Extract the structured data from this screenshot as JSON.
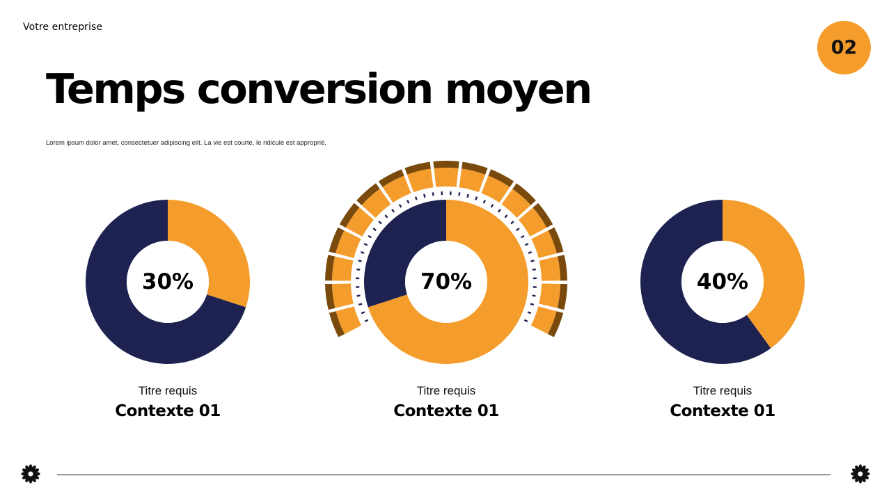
{
  "header": {
    "company": "Votre entreprise",
    "page_number": "02"
  },
  "title": "Temps conversion moyen",
  "subtitle": "Lorem ipsum dolor amet, consectetuer adipiscing elit. La vie est courte, le ridicule est approprié.",
  "colors": {
    "accent": "#F59D2C",
    "navy": "#1E2251",
    "dark_orange": "#7A4A0D",
    "text": "#000000"
  },
  "chart_data": [
    {
      "type": "pie",
      "style": "donut",
      "slices": [
        {
          "value": 30,
          "color": "#F59D2C"
        },
        {
          "value": 70,
          "color": "#1E2251"
        }
      ],
      "center_label": "30%",
      "label": "Titre requis",
      "context": "Contexte 01"
    },
    {
      "type": "pie",
      "style": "donut-gauge",
      "slices": [
        {
          "value": 70,
          "color": "#F59D2C"
        },
        {
          "value": 30,
          "color": "#1E2251"
        }
      ],
      "center_label": "70%",
      "label": "Titre requis",
      "context": "Contexte 01"
    },
    {
      "type": "pie",
      "style": "donut",
      "slices": [
        {
          "value": 40,
          "color": "#F59D2C"
        },
        {
          "value": 60,
          "color": "#1E2251"
        }
      ],
      "center_label": "40%",
      "label": "Titre requis",
      "context": "Contexte 01"
    }
  ],
  "footer": {
    "left_icon": "flower-icon",
    "right_icon": "flower-icon"
  }
}
